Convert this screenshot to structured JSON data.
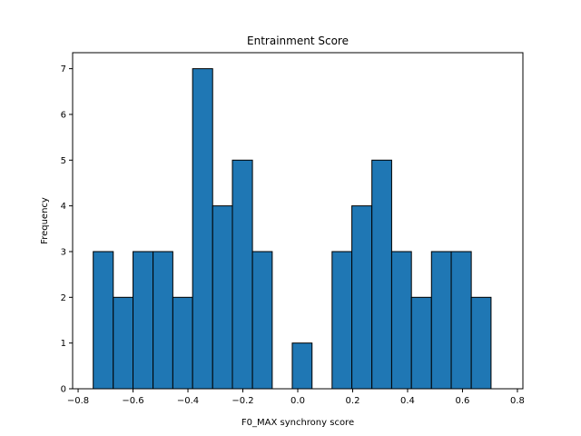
{
  "chart_data": {
    "type": "bar",
    "title": "Entrainment Score",
    "xlabel": "F0_MAX synchrony score",
    "ylabel": "Frequency",
    "bar_color": "#1f77b4",
    "edge_color": "#000000",
    "xlim": [
      -0.82,
      0.82
    ],
    "ylim": [
      0,
      7.35
    ],
    "xticks": [
      -0.8,
      -0.6,
      -0.4,
      -0.2,
      0.0,
      0.2,
      0.4,
      0.6,
      0.8
    ],
    "xtick_labels": [
      "−0.8",
      "−0.6",
      "−0.4",
      "−0.2",
      "0.0",
      "0.2",
      "0.4",
      "0.6",
      "0.8"
    ],
    "yticks": [
      0,
      1,
      2,
      3,
      4,
      5,
      6,
      7
    ],
    "ytick_labels": [
      "0",
      "1",
      "2",
      "3",
      "4",
      "5",
      "6",
      "7"
    ],
    "bin_edges": [
      -0.745,
      -0.672,
      -0.6,
      -0.527,
      -0.455,
      -0.383,
      -0.31,
      -0.238,
      -0.165,
      -0.093,
      -0.02,
      0.052,
      0.125,
      0.197,
      0.27,
      0.342,
      0.414,
      0.487,
      0.559,
      0.632,
      0.704
    ],
    "bins": [
      {
        "x0": -0.745,
        "x1": -0.672,
        "count": 3
      },
      {
        "x0": -0.672,
        "x1": -0.6,
        "count": 2
      },
      {
        "x0": -0.6,
        "x1": -0.527,
        "count": 3
      },
      {
        "x0": -0.527,
        "x1": -0.455,
        "count": 3
      },
      {
        "x0": -0.455,
        "x1": -0.383,
        "count": 2
      },
      {
        "x0": -0.383,
        "x1": -0.31,
        "count": 7
      },
      {
        "x0": -0.31,
        "x1": -0.238,
        "count": 4
      },
      {
        "x0": -0.238,
        "x1": -0.165,
        "count": 5
      },
      {
        "x0": -0.165,
        "x1": -0.093,
        "count": 3
      },
      {
        "x0": -0.093,
        "x1": -0.02,
        "count": 0
      },
      {
        "x0": -0.02,
        "x1": 0.052,
        "count": 1
      },
      {
        "x0": 0.052,
        "x1": 0.125,
        "count": 0
      },
      {
        "x0": 0.125,
        "x1": 0.197,
        "count": 3
      },
      {
        "x0": 0.197,
        "x1": 0.27,
        "count": 4
      },
      {
        "x0": 0.27,
        "x1": 0.342,
        "count": 5
      },
      {
        "x0": 0.342,
        "x1": 0.414,
        "count": 3
      },
      {
        "x0": 0.414,
        "x1": 0.487,
        "count": 2
      },
      {
        "x0": 0.487,
        "x1": 0.559,
        "count": 3
      },
      {
        "x0": 0.559,
        "x1": 0.632,
        "count": 3
      },
      {
        "x0": 0.632,
        "x1": 0.704,
        "count": 2
      }
    ]
  }
}
